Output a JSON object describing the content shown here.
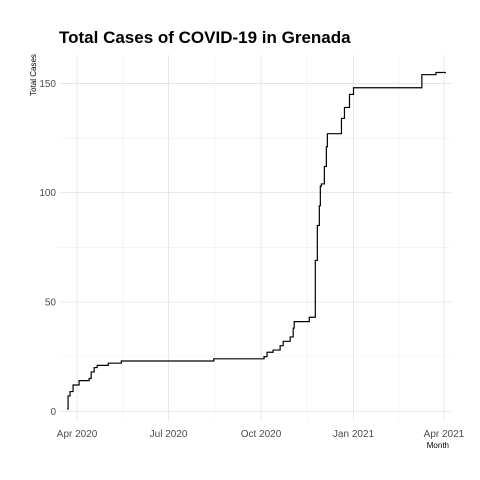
{
  "chart_data": {
    "type": "line",
    "title": "Total Cases of COVID-19 in Grenada",
    "xlabel": "Month",
    "ylabel": "Total Cases",
    "x_ticks": [
      "2020-04-01",
      "2020-07-01",
      "2020-10-01",
      "2021-01-01",
      "2021-04-01"
    ],
    "x_tick_labels": [
      "Apr 2020",
      "Jul 2020",
      "Oct 2020",
      "Jan 2021",
      "Apr 2021"
    ],
    "y_ticks": [
      0,
      50,
      100,
      150
    ],
    "y_tick_labels": [
      "0",
      "50",
      "100",
      "150"
    ],
    "xlim": [
      "2020-03-14",
      "2021-04-08"
    ],
    "ylim": [
      -4,
      163
    ],
    "grid": true,
    "step": true,
    "series": [
      {
        "color": "#000000",
        "points": [
          [
            "2020-03-22",
            1
          ],
          [
            "2020-03-23",
            7
          ],
          [
            "2020-03-25",
            9
          ],
          [
            "2020-03-28",
            12
          ],
          [
            "2020-04-03",
            14
          ],
          [
            "2020-04-13",
            15
          ],
          [
            "2020-04-15",
            18
          ],
          [
            "2020-04-18",
            20
          ],
          [
            "2020-04-21",
            21
          ],
          [
            "2020-05-02",
            22
          ],
          [
            "2020-05-15",
            23
          ],
          [
            "2020-08-15",
            24
          ],
          [
            "2020-10-04",
            25
          ],
          [
            "2020-10-07",
            27
          ],
          [
            "2020-10-13",
            28
          ],
          [
            "2020-10-20",
            30
          ],
          [
            "2020-10-23",
            32
          ],
          [
            "2020-10-30",
            34
          ],
          [
            "2020-11-02",
            38
          ],
          [
            "2020-11-03",
            41
          ],
          [
            "2020-11-18",
            43
          ],
          [
            "2020-11-24",
            69
          ],
          [
            "2020-11-26",
            85
          ],
          [
            "2020-11-28",
            94
          ],
          [
            "2020-11-29",
            103
          ],
          [
            "2020-11-30",
            104
          ],
          [
            "2020-12-03",
            112
          ],
          [
            "2020-12-05",
            121
          ],
          [
            "2020-12-06",
            127
          ],
          [
            "2020-12-20",
            134
          ],
          [
            "2020-12-23",
            139
          ],
          [
            "2020-12-28",
            145
          ],
          [
            "2021-01-01",
            148
          ],
          [
            "2021-03-10",
            154
          ],
          [
            "2021-03-24",
            155
          ],
          [
            "2021-04-03",
            155
          ]
        ]
      }
    ]
  }
}
